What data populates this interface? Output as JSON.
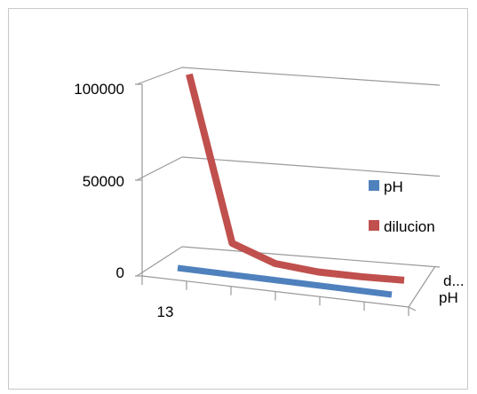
{
  "chart_data": {
    "type": "line",
    "style": "3d",
    "categories": [
      "13",
      "",
      "",
      "",
      "",
      ""
    ],
    "x_tick_label": "13",
    "series": [
      {
        "name": "pH",
        "values": [
          13,
          13,
          13,
          13,
          13,
          13
        ],
        "color": "#4f81bd"
      },
      {
        "name": "dilucion",
        "values": [
          104000,
          14000,
          4500,
          1500,
          500,
          100
        ],
        "color": "#c0504d"
      }
    ],
    "y_ticks": [
      "0",
      "50000",
      "100000"
    ],
    "ylim": [
      0,
      100000
    ],
    "depth_axis_labels": [
      "d...",
      "pH"
    ],
    "legend": {
      "position": "right",
      "items": [
        "pH",
        "dilucion"
      ]
    },
    "grid": true
  }
}
